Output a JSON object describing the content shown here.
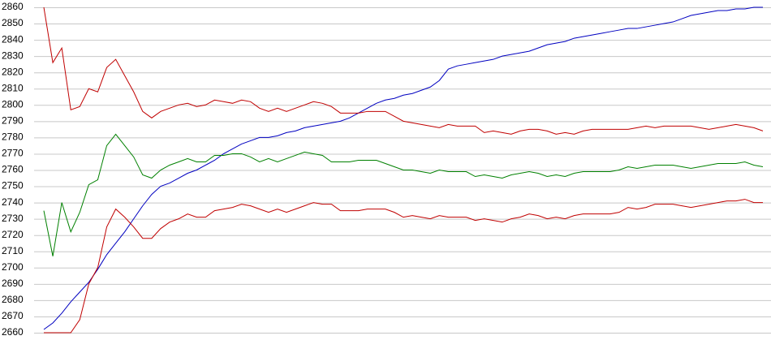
{
  "chart_data": {
    "type": "line",
    "ylim": [
      2660,
      2860
    ],
    "yticks": [
      2660,
      2670,
      2680,
      2690,
      2700,
      2710,
      2720,
      2730,
      2740,
      2750,
      2760,
      2770,
      2780,
      2790,
      2800,
      2810,
      2820,
      2830,
      2840,
      2850,
      2860
    ],
    "grid": true,
    "series": [
      {
        "color": "#0000c0",
        "values": [
          2662,
          2666,
          2672,
          2679,
          2685,
          2691,
          2699,
          2708,
          2715,
          2722,
          2730,
          2738,
          2745,
          2750,
          2752,
          2755,
          2758,
          2760,
          2763,
          2766,
          2770,
          2773,
          2776,
          2778,
          2780,
          2780,
          2781,
          2783,
          2784,
          2786,
          2787,
          2788,
          2789,
          2790,
          2792,
          2795,
          2798,
          2801,
          2803,
          2804,
          2806,
          2807,
          2809,
          2811,
          2815,
          2822,
          2824,
          2825,
          2826,
          2827,
          2828,
          2830,
          2831,
          2832,
          2833,
          2835,
          2837,
          2838,
          2839,
          2841,
          2842,
          2843,
          2844,
          2845,
          2846,
          2847,
          2847,
          2848,
          2849,
          2850,
          2851,
          2853,
          2855,
          2856,
          2857,
          2858,
          2858,
          2859,
          2859,
          2860,
          2860
        ]
      },
      {
        "color": "#c00000",
        "values": [
          2860,
          2826,
          2835,
          2797,
          2799,
          2810,
          2808,
          2823,
          2828,
          2818,
          2808,
          2796,
          2792,
          2796,
          2798,
          2800,
          2801,
          2799,
          2800,
          2803,
          2802,
          2801,
          2803,
          2802,
          2798,
          2796,
          2798,
          2796,
          2798,
          2800,
          2802,
          2801,
          2799,
          2795,
          2795,
          2795,
          2796,
          2796,
          2796,
          2793,
          2790,
          2789,
          2788,
          2787,
          2786,
          2788,
          2787,
          2787,
          2787,
          2783,
          2784,
          2783,
          2782,
          2784,
          2785,
          2785,
          2784,
          2782,
          2783,
          2782,
          2784,
          2785,
          2785,
          2785,
          2785,
          2785,
          2786,
          2787,
          2786,
          2787,
          2787,
          2787,
          2787,
          2786,
          2785,
          2786,
          2787,
          2788,
          2787,
          2786,
          2784
        ]
      },
      {
        "color": "#008000",
        "values": [
          2735,
          2707,
          2740,
          2722,
          2734,
          2751,
          2754,
          2775,
          2782,
          2775,
          2768,
          2757,
          2755,
          2760,
          2763,
          2765,
          2767,
          2765,
          2765,
          2769,
          2769,
          2770,
          2770,
          2768,
          2765,
          2767,
          2765,
          2767,
          2769,
          2771,
          2770,
          2769,
          2765,
          2765,
          2765,
          2766,
          2766,
          2766,
          2764,
          2762,
          2760,
          2760,
          2759,
          2758,
          2760,
          2759,
          2759,
          2759,
          2756,
          2757,
          2756,
          2755,
          2757,
          2758,
          2759,
          2758,
          2756,
          2757,
          2756,
          2758,
          2759,
          2759,
          2759,
          2759,
          2760,
          2762,
          2761,
          2762,
          2763,
          2763,
          2763,
          2762,
          2761,
          2762,
          2763,
          2764,
          2764,
          2764,
          2765,
          2763,
          2762
        ]
      },
      {
        "color": "#c00000",
        "values": [
          2660,
          2660,
          2660,
          2660,
          2668,
          2690,
          2700,
          2725,
          2736,
          2731,
          2725,
          2718,
          2718,
          2724,
          2728,
          2730,
          2733,
          2731,
          2731,
          2735,
          2736,
          2737,
          2739,
          2738,
          2736,
          2734,
          2736,
          2734,
          2736,
          2738,
          2740,
          2739,
          2739,
          2735,
          2735,
          2735,
          2736,
          2736,
          2736,
          2734,
          2731,
          2732,
          2731,
          2730,
          2732,
          2731,
          2731,
          2731,
          2729,
          2730,
          2729,
          2728,
          2730,
          2731,
          2733,
          2732,
          2730,
          2731,
          2730,
          2732,
          2733,
          2733,
          2733,
          2733,
          2734,
          2737,
          2736,
          2737,
          2739,
          2739,
          2739,
          2738,
          2737,
          2738,
          2739,
          2740,
          2741,
          2741,
          2742,
          2740,
          2740
        ]
      }
    ]
  }
}
